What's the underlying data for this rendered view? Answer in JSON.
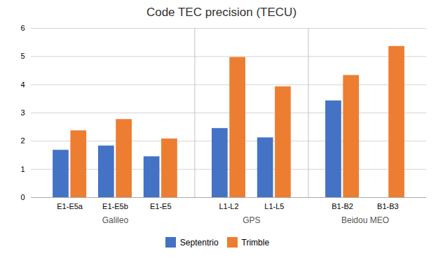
{
  "chart_data": {
    "type": "bar",
    "title": "Code TEC precision (TECU)",
    "categories": [
      "E1-E5a",
      "E1-E5b",
      "E1-E5",
      "L1-L2",
      "L1-L5",
      "B1-B2",
      "B1-B3"
    ],
    "groups": [
      {
        "label": "Galileo",
        "categories": [
          "E1-E5a",
          "E1-E5b",
          "E1-E5"
        ]
      },
      {
        "label": "GPS",
        "categories": [
          "L1-L2",
          "L1-L5"
        ]
      },
      {
        "label": "Beidou MEO",
        "categories": [
          "B1-B2",
          "B1-B3"
        ]
      }
    ],
    "series": [
      {
        "name": "Septentrio",
        "color": "#4472C4",
        "values": [
          1.68,
          1.83,
          1.45,
          2.45,
          2.12,
          3.43,
          0.0
        ]
      },
      {
        "name": "Trimble",
        "color": "#ED7D31",
        "values": [
          2.37,
          2.77,
          2.08,
          4.97,
          3.93,
          4.33,
          5.36
        ]
      }
    ],
    "ylim": [
      0,
      6
    ],
    "yticks": [
      0,
      1,
      2,
      3,
      4,
      5,
      6
    ],
    "grid": true,
    "legend": "bottom"
  }
}
